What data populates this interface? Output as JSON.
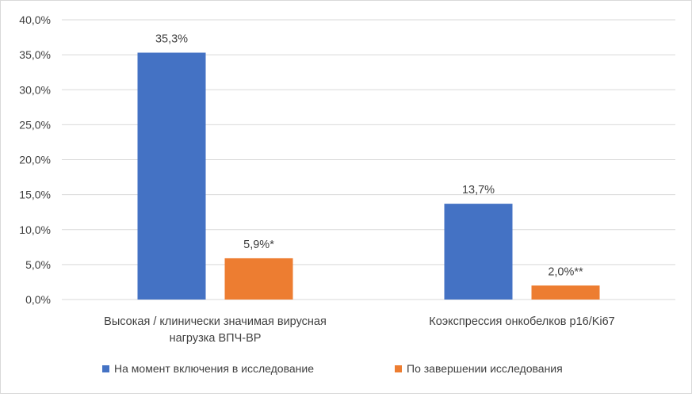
{
  "chart_data": {
    "type": "bar",
    "title": "",
    "xlabel": "",
    "ylabel": "",
    "ylim": [
      0,
      40
    ],
    "grid": true,
    "legend_position": "bottom",
    "y_ticks": [
      "0,0%",
      "5,0%",
      "10,0%",
      "15,0%",
      "20,0%",
      "25,0%",
      "30,0%",
      "35,0%",
      "40,0%"
    ],
    "categories": [
      [
        "Высокая / клинически значимая вирусная",
        "нагрузка ВПЧ-ВР"
      ],
      [
        "Коэкспрессия онкобелков p16/Ki67"
      ]
    ],
    "series": [
      {
        "name": "На момент включения в исследование",
        "color": "#4472c4",
        "values": [
          35.3,
          13.7
        ],
        "labels": [
          "35,3%",
          "13,7%"
        ]
      },
      {
        "name": "По завершении исследования",
        "color": "#ed7d31",
        "values": [
          5.9,
          2.0
        ],
        "labels": [
          "5,9%*",
          "2,0%**"
        ]
      }
    ]
  }
}
